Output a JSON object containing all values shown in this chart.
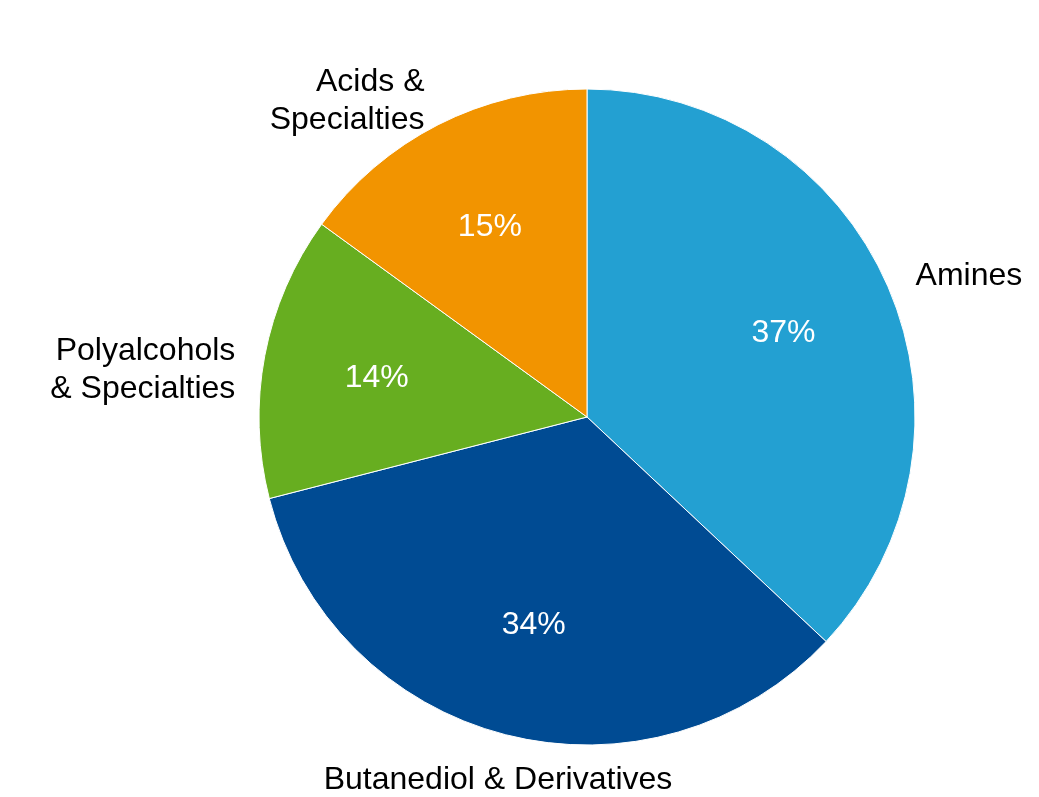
{
  "chart_data": {
    "type": "pie",
    "categories": [
      "Amines",
      "Butanediol & Derivatives",
      "Polyalcohols & Specialties",
      "Acids & Specialties"
    ],
    "values": [
      37,
      34,
      14,
      15
    ],
    "colors": [
      "#23a0d2",
      "#004b93",
      "#67ae20",
      "#f29400"
    ],
    "value_labels": [
      "37%",
      "34%",
      "14%",
      "15%"
    ]
  }
}
